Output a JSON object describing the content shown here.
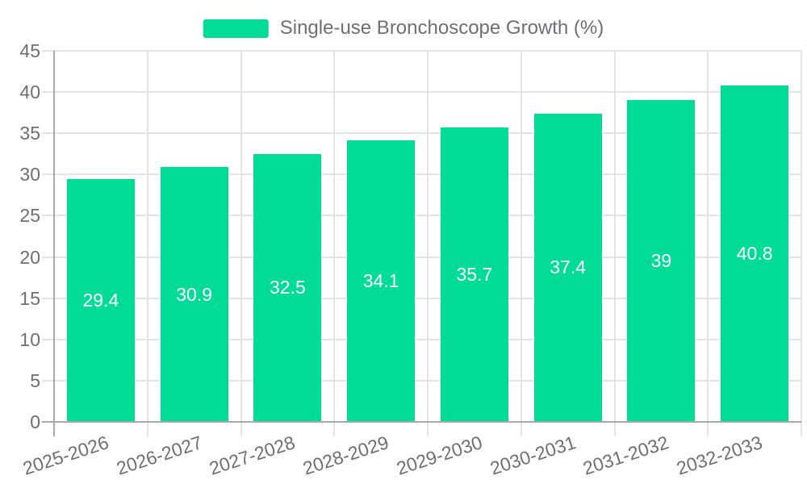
{
  "chart_data": {
    "type": "bar",
    "title": "Single-use Bronchoscope Growth (%)",
    "legend": {
      "position": "top",
      "label": "Single-use Bronchoscope Growth (%)"
    },
    "categories": [
      "2025-2026",
      "2026-2027",
      "2027-2028",
      "2028-2029",
      "2029-2030",
      "2030-2031",
      "2031-2032",
      "2032-2033"
    ],
    "series": [
      {
        "name": "Single-use Bronchoscope Growth (%)",
        "values": [
          29.4,
          30.9,
          32.5,
          34.1,
          35.7,
          37.4,
          39,
          40.8
        ],
        "value_labels": [
          "29.4",
          "30.9",
          "32.5",
          "34.1",
          "35.7",
          "37.4",
          "39",
          "40.8"
        ]
      }
    ],
    "xlabel": "",
    "ylabel": "",
    "ylim": [
      0,
      45
    ],
    "ytick_step": 5,
    "ytick_labels": [
      "0",
      "5",
      "10",
      "15",
      "20",
      "25",
      "30",
      "35",
      "40",
      "45"
    ],
    "grid": "on",
    "colors": {
      "bar": "#00DC95",
      "grid_line": "#E4E4E4",
      "axis_line": "#A9A9A9",
      "tick_label": "#6E6E74",
      "value_label": "#FFFFFF",
      "background": "#FFFFFF"
    }
  }
}
